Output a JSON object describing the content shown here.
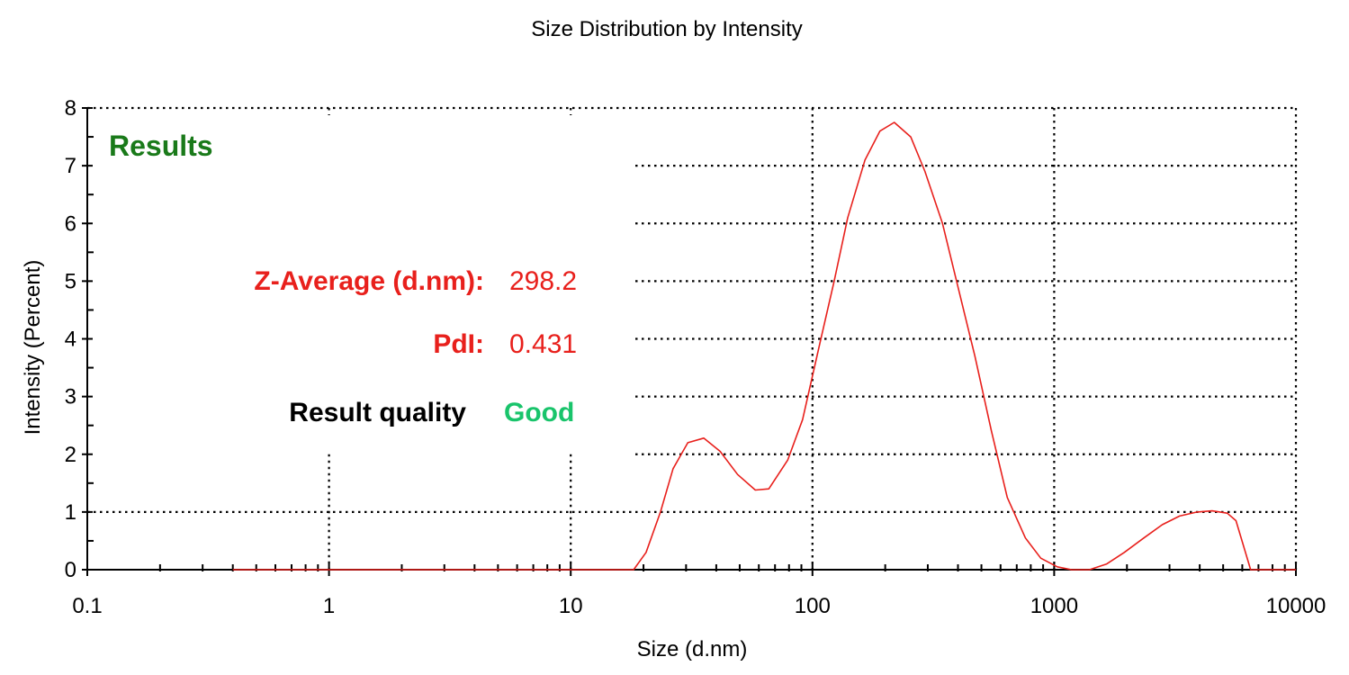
{
  "chart_data": {
    "type": "line",
    "title": "Size Distribution by Intensity",
    "xlabel": "Size (d.nm)",
    "ylabel": "Intensity (Percent)",
    "xscale": "log",
    "xlim": [
      0.1,
      10000
    ],
    "ylim": [
      0,
      8
    ],
    "x_ticks": [
      "0.1",
      "1",
      "10",
      "100",
      "1000",
      "10000"
    ],
    "y_ticks": [
      "0",
      "1",
      "2",
      "3",
      "4",
      "5",
      "6",
      "7",
      "8"
    ],
    "grid": "dotted",
    "series": [
      {
        "color": "#e8201c",
        "points": [
          [
            0.4,
            0
          ],
          [
            1,
            0
          ],
          [
            5,
            0
          ],
          [
            18.2,
            0
          ],
          [
            20.5,
            0.3
          ],
          [
            23.5,
            1.0
          ],
          [
            26.5,
            1.75
          ],
          [
            30.5,
            2.2
          ],
          [
            35.5,
            2.28
          ],
          [
            41.5,
            2.05
          ],
          [
            49,
            1.65
          ],
          [
            58,
            1.38
          ],
          [
            66,
            1.4
          ],
          [
            79,
            1.9
          ],
          [
            91,
            2.6
          ],
          [
            107,
            3.9
          ],
          [
            123,
            5.0
          ],
          [
            140,
            6.1
          ],
          [
            165,
            7.1
          ],
          [
            190,
            7.6
          ],
          [
            218,
            7.75
          ],
          [
            255,
            7.5
          ],
          [
            292,
            6.9
          ],
          [
            345,
            6.0
          ],
          [
            400,
            4.9
          ],
          [
            470,
            3.7
          ],
          [
            550,
            2.4
          ],
          [
            640,
            1.25
          ],
          [
            760,
            0.55
          ],
          [
            880,
            0.2
          ],
          [
            1030,
            0.05
          ],
          [
            1180,
            0
          ],
          [
            1400,
            0
          ],
          [
            1650,
            0.1
          ],
          [
            1950,
            0.3
          ],
          [
            2350,
            0.55
          ],
          [
            2800,
            0.78
          ],
          [
            3300,
            0.93
          ],
          [
            3900,
            1.0
          ],
          [
            4500,
            1.02
          ],
          [
            5200,
            0.98
          ],
          [
            5650,
            0.85
          ],
          [
            6500,
            0
          ],
          [
            7500,
            0
          ],
          [
            10000,
            0
          ]
        ]
      }
    ],
    "annotations": {
      "heading": "Results",
      "heading_color": "#1a7a1a",
      "rows": [
        {
          "key": "Z-Average (d.nm):",
          "value": "298.2",
          "key_color": "#e8201c",
          "value_color": "#e8201c"
        },
        {
          "key": "PdI:",
          "value": "0.431",
          "key_color": "#e8201c",
          "value_color": "#e8201c"
        },
        {
          "key": "Result quality",
          "value": "Good",
          "key_color": "#000000",
          "value_color": "#19c46b"
        }
      ]
    }
  }
}
